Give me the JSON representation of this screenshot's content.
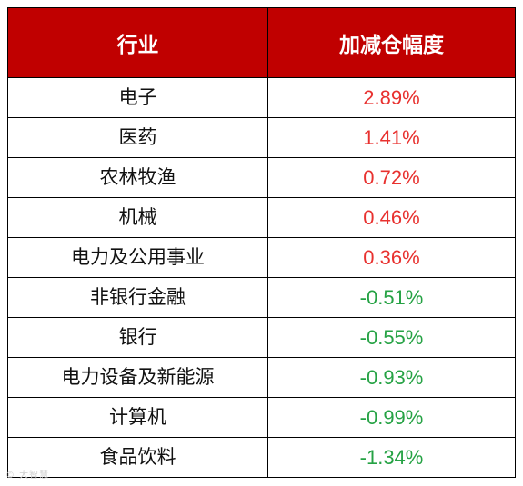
{
  "header": {
    "col1": "行业",
    "col2": "加减仓幅度"
  },
  "rows": [
    {
      "industry": "电子",
      "change": "2.89%"
    },
    {
      "industry": "医药",
      "change": "1.41%"
    },
    {
      "industry": "农林牧渔",
      "change": "0.72%"
    },
    {
      "industry": "机械",
      "change": "0.46%"
    },
    {
      "industry": "电力及公用事业",
      "change": "0.36%"
    },
    {
      "industry": "非银行金融",
      "change": "-0.51%"
    },
    {
      "industry": "银行",
      "change": "-0.55%"
    },
    {
      "industry": "电力设备及新能源",
      "change": "-0.93%"
    },
    {
      "industry": "计算机",
      "change": "-0.99%"
    },
    {
      "industry": "食品饮料",
      "change": "-1.34%"
    }
  ],
  "colors": {
    "header_bg": "#c00000",
    "positive": "#e8312f",
    "negative": "#25a244"
  },
  "watermark": "© 大智慧"
}
